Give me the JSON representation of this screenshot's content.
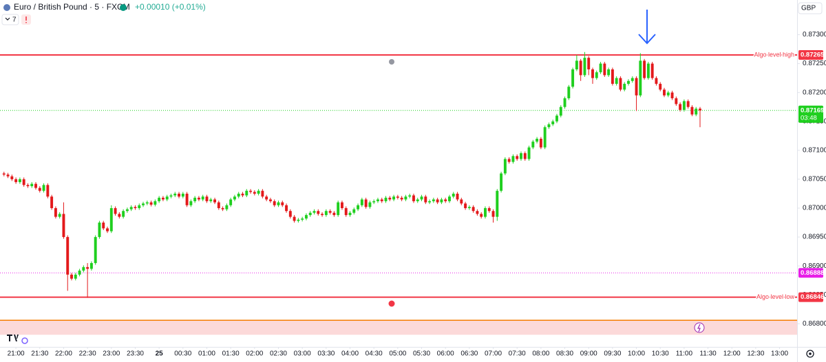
{
  "chart_data": {
    "type": "candlestick",
    "title": "Euro / British Pound · 5 · FXCM",
    "change": "+0.00010 (+0.01%)",
    "indicator_count": 7,
    "currency": "GBP",
    "up_color": "#1fcf1f",
    "down_color": "#e3191b",
    "grid": false,
    "xlim": [
      -1,
      199.4
    ],
    "ylim": [
      0.8676,
      0.8736
    ],
    "yticks": [
      {
        "value": 0.873,
        "label": "0.87300"
      },
      {
        "value": 0.8725,
        "label": "0.87250"
      },
      {
        "value": 0.872,
        "label": "0.87200"
      },
      {
        "value": 0.8715,
        "label": "0.87150"
      },
      {
        "value": 0.871,
        "label": "0.87100"
      },
      {
        "value": 0.8705,
        "label": "0.87050"
      },
      {
        "value": 0.87,
        "label": "0.87000"
      },
      {
        "value": 0.8695,
        "label": "0.86950"
      },
      {
        "value": 0.869,
        "label": "0.86900"
      },
      {
        "value": 0.8685,
        "label": "0.86850"
      },
      {
        "value": 0.868,
        "label": "0.86800"
      }
    ],
    "xticks": [
      {
        "value": 3,
        "label": "21:00"
      },
      {
        "value": 9,
        "label": "21:30"
      },
      {
        "value": 15,
        "label": "22:00"
      },
      {
        "value": 21,
        "label": "22:30"
      },
      {
        "value": 27,
        "label": "23:00"
      },
      {
        "value": 33,
        "label": "23:30"
      },
      {
        "value": 39,
        "label": "25"
      },
      {
        "value": 45,
        "label": "00:30"
      },
      {
        "value": 51,
        "label": "01:00"
      },
      {
        "value": 57,
        "label": "01:30"
      },
      {
        "value": 63,
        "label": "02:00"
      },
      {
        "value": 69,
        "label": "02:30"
      },
      {
        "value": 75,
        "label": "03:00"
      },
      {
        "value": 81,
        "label": "03:30"
      },
      {
        "value": 87,
        "label": "04:00"
      },
      {
        "value": 93,
        "label": "04:30"
      },
      {
        "value": 99,
        "label": "05:00"
      },
      {
        "value": 105,
        "label": "05:30"
      },
      {
        "value": 111,
        "label": "06:00"
      },
      {
        "value": 117,
        "label": "06:30"
      },
      {
        "value": 123,
        "label": "07:00"
      },
      {
        "value": 129,
        "label": "07:30"
      },
      {
        "value": 135,
        "label": "08:00"
      },
      {
        "value": 141,
        "label": "08:30"
      },
      {
        "value": 147,
        "label": "09:00"
      },
      {
        "value": 153,
        "label": "09:30"
      },
      {
        "value": 159,
        "label": "10:00"
      },
      {
        "value": 165,
        "label": "10:30"
      },
      {
        "value": 171,
        "label": "11:00"
      },
      {
        "value": 177,
        "label": "11:30"
      },
      {
        "value": 183,
        "label": "12:00"
      },
      {
        "value": 189,
        "label": "12:30"
      },
      {
        "value": 195,
        "label": "13:00"
      }
    ],
    "levels": [
      {
        "name": "Algo level high",
        "value": 0.87265,
        "label": "0.87265",
        "color": "#f23645",
        "style": "solid"
      },
      {
        "name": "Algo level low",
        "value": 0.86846,
        "label": "0.86846",
        "color": "#f23645",
        "style": "solid"
      },
      {
        "value": 0.87169,
        "label": "0.87169",
        "countdown": "03:48",
        "color": "#1fcf1f",
        "style": "dotted"
      },
      {
        "value": 0.86888,
        "label": "0.86888",
        "color": "#e81ee8",
        "style": "dotted"
      }
    ],
    "zones": [
      {
        "from": 0.86781,
        "to": 0.86806,
        "fill": "#fcd9d9",
        "edge": "#f57c00"
      }
    ],
    "open": [
      0.8706,
      0.87058,
      0.87055,
      0.8705,
      0.87045,
      0.8705,
      0.8704,
      0.87038,
      0.87042,
      0.87035,
      0.8703,
      0.8704,
      0.8702,
      0.87,
      0.86985,
      0.8699,
      0.8695,
      0.86885,
      0.86878,
      0.86885,
      0.86892,
      0.86898,
      0.86895,
      0.86905,
      0.8695,
      0.86975,
      0.86965,
      0.8696,
      0.87,
      0.8699,
      0.86985,
      0.86995,
      0.86998,
      0.87002,
      0.87,
      0.87005,
      0.87008,
      0.8701,
      0.87006,
      0.87012,
      0.87018,
      0.87015,
      0.8702,
      0.87022,
      0.87025,
      0.8702,
      0.87025,
      0.87005,
      0.87012,
      0.87018,
      0.87015,
      0.8702,
      0.87012,
      0.87015,
      0.8701,
      0.87,
      0.86998,
      0.87005,
      0.87015,
      0.8702,
      0.87025,
      0.87022,
      0.8703,
      0.87028,
      0.87025,
      0.8703,
      0.8702,
      0.87015,
      0.87012,
      0.87005,
      0.8701,
      0.87005,
      0.86995,
      0.86985,
      0.86978,
      0.8698,
      0.86982,
      0.86988,
      0.86992,
      0.86995,
      0.8699,
      0.86988,
      0.86995,
      0.86992,
      0.86988,
      0.8701,
      0.87,
      0.86988,
      0.86992,
      0.86998,
      0.87005,
      0.87015,
      0.87002,
      0.8701,
      0.87012,
      0.87015,
      0.87012,
      0.87018,
      0.87015,
      0.8702,
      0.87018,
      0.87015,
      0.8702,
      0.87022,
      0.87012,
      0.87015,
      0.8702,
      0.8701,
      0.87012,
      0.87015,
      0.8701,
      0.87015,
      0.87012,
      0.8702,
      0.87025,
      0.87015,
      0.87008,
      0.87,
      0.87002,
      0.86995,
      0.8699,
      0.86985,
      0.87,
      0.86995,
      0.86985,
      0.8703,
      0.8706,
      0.87085,
      0.8708,
      0.8709,
      0.87085,
      0.87095,
      0.87085,
      0.87105,
      0.87115,
      0.8712,
      0.87105,
      0.8714,
      0.87145,
      0.8715,
      0.8716,
      0.87175,
      0.8719,
      0.8721,
      0.8724,
      0.87255,
      0.8723,
      0.8726,
      0.8724,
      0.87225,
      0.87235,
      0.8725,
      0.8723,
      0.8724,
      0.87215,
      0.87225,
      0.87205,
      0.87215,
      0.8722,
      0.87225,
      0.87195,
      0.87255,
      0.87225,
      0.8725,
      0.87225,
      0.87215,
      0.87205,
      0.87195,
      0.872,
      0.8719,
      0.8718,
      0.8717,
      0.87185,
      0.87175,
      0.87162,
      0.87172
    ],
    "high": [
      0.87063,
      0.87061,
      0.87058,
      0.87053,
      0.87053,
      0.87053,
      0.87043,
      0.87045,
      0.87045,
      0.87038,
      0.87043,
      0.87043,
      0.87023,
      0.87003,
      0.86993,
      0.8701,
      0.86953,
      0.86888,
      0.86888,
      0.86895,
      0.86901,
      0.86905,
      0.86908,
      0.86953,
      0.86978,
      0.86978,
      0.86968,
      0.87005,
      0.87003,
      0.86993,
      0.86998,
      0.87001,
      0.87005,
      0.87005,
      0.87008,
      0.87011,
      0.87013,
      0.87013,
      0.87015,
      0.87021,
      0.87021,
      0.87023,
      0.87025,
      0.87028,
      0.87028,
      0.87028,
      0.87028,
      0.87015,
      0.87021,
      0.87021,
      0.87023,
      0.87023,
      0.87018,
      0.87018,
      0.87013,
      0.87003,
      0.87008,
      0.87018,
      0.87023,
      0.87028,
      0.87028,
      0.87033,
      0.87033,
      0.87031,
      0.87033,
      0.87033,
      0.87023,
      0.87018,
      0.87015,
      0.87013,
      0.87013,
      0.87008,
      0.86998,
      0.86988,
      0.86983,
      0.86985,
      0.86991,
      0.86995,
      0.86998,
      0.86998,
      0.86993,
      0.86998,
      0.86998,
      0.86995,
      0.87013,
      0.87013,
      0.87003,
      0.86995,
      0.87001,
      0.87008,
      0.87018,
      0.87018,
      0.87013,
      0.87015,
      0.87018,
      0.87018,
      0.87021,
      0.87021,
      0.87023,
      0.87023,
      0.87021,
      0.87023,
      0.87025,
      0.87025,
      0.87018,
      0.87023,
      0.87023,
      0.87015,
      0.87018,
      0.87018,
      0.87018,
      0.87018,
      0.87023,
      0.87028,
      0.87028,
      0.87018,
      0.87011,
      0.87005,
      0.87005,
      0.86998,
      0.86993,
      0.87003,
      0.87003,
      0.86998,
      0.87033,
      0.87063,
      0.87088,
      0.87088,
      0.87093,
      0.87093,
      0.87098,
      0.87098,
      0.87108,
      0.87118,
      0.87123,
      0.87123,
      0.87143,
      0.87148,
      0.87153,
      0.87163,
      0.87178,
      0.87193,
      0.87213,
      0.87243,
      0.87265,
      0.87258,
      0.8727,
      0.87263,
      0.87243,
      0.87238,
      0.87253,
      0.87253,
      0.87243,
      0.87243,
      0.87228,
      0.87228,
      0.87218,
      0.87223,
      0.87228,
      0.87228,
      0.87268,
      0.87258,
      0.87253,
      0.87253,
      0.87228,
      0.87218,
      0.87208,
      0.87203,
      0.87203,
      0.87193,
      0.87183,
      0.87188,
      0.87188,
      0.87178,
      0.87175,
      0.87175
    ],
    "low": [
      0.87055,
      0.87052,
      0.87047,
      0.87042,
      0.87042,
      0.87037,
      0.87035,
      0.87035,
      0.87032,
      0.87027,
      0.87027,
      0.87017,
      0.86997,
      0.86982,
      0.86982,
      0.86947,
      0.86857,
      0.86875,
      0.86875,
      0.86882,
      0.86889,
      0.86845,
      0.86892,
      0.86902,
      0.86947,
      0.86962,
      0.86957,
      0.86957,
      0.86987,
      0.86982,
      0.86982,
      0.86992,
      0.86995,
      0.86997,
      0.86997,
      0.87002,
      0.87005,
      0.87003,
      0.87003,
      0.87009,
      0.87012,
      0.87012,
      0.87017,
      0.87019,
      0.87017,
      0.87017,
      0.87002,
      0.87002,
      0.87009,
      0.87012,
      0.87012,
      0.87009,
      0.87009,
      0.87007,
      0.86997,
      0.86995,
      0.86995,
      0.87002,
      0.87012,
      0.87017,
      0.87019,
      0.87019,
      0.87025,
      0.87022,
      0.87022,
      0.87017,
      0.87012,
      0.87009,
      0.87002,
      0.87002,
      0.87002,
      0.86992,
      0.86982,
      0.86975,
      0.86975,
      0.86977,
      0.86979,
      0.86985,
      0.86989,
      0.86987,
      0.86985,
      0.86985,
      0.86989,
      0.86985,
      0.86985,
      0.86997,
      0.86985,
      0.86985,
      0.86989,
      0.86995,
      0.87002,
      0.86999,
      0.86999,
      0.87007,
      0.87009,
      0.87009,
      0.87009,
      0.87012,
      0.87012,
      0.87015,
      0.87012,
      0.87012,
      0.87017,
      0.87009,
      0.87009,
      0.87012,
      0.87007,
      0.87007,
      0.87009,
      0.87007,
      0.87007,
      0.87009,
      0.87009,
      0.87017,
      0.87012,
      0.87005,
      0.86997,
      0.86997,
      0.86992,
      0.86987,
      0.86982,
      0.86982,
      0.86992,
      0.86975,
      0.86978,
      0.87027,
      0.87057,
      0.87077,
      0.87077,
      0.87082,
      0.87082,
      0.87082,
      0.87082,
      0.87102,
      0.87112,
      0.87102,
      0.87102,
      0.87137,
      0.87142,
      0.87147,
      0.87157,
      0.87172,
      0.87187,
      0.87207,
      0.87237,
      0.8722,
      0.87227,
      0.8723,
      0.87215,
      0.87222,
      0.87232,
      0.87227,
      0.87227,
      0.87212,
      0.87212,
      0.87202,
      0.87202,
      0.87212,
      0.87217,
      0.87168,
      0.87192,
      0.87222,
      0.87222,
      0.87222,
      0.87212,
      0.87202,
      0.87192,
      0.87192,
      0.87187,
      0.87177,
      0.87167,
      0.87167,
      0.87172,
      0.87159,
      0.87159,
      0.8714
    ],
    "close": [
      0.87058,
      0.87055,
      0.8705,
      0.87045,
      0.8705,
      0.8704,
      0.87038,
      0.87042,
      0.87035,
      0.8703,
      0.8704,
      0.8702,
      0.87,
      0.86985,
      0.8699,
      0.8695,
      0.86885,
      0.86878,
      0.86885,
      0.86892,
      0.86898,
      0.86895,
      0.86905,
      0.8695,
      0.86975,
      0.86965,
      0.8696,
      0.87,
      0.8699,
      0.86985,
      0.86995,
      0.86998,
      0.87002,
      0.87,
      0.87005,
      0.87008,
      0.8701,
      0.87006,
      0.87012,
      0.87018,
      0.87015,
      0.8702,
      0.87022,
      0.87025,
      0.8702,
      0.87025,
      0.87005,
      0.87012,
      0.87018,
      0.87015,
      0.8702,
      0.87012,
      0.87015,
      0.8701,
      0.87,
      0.86998,
      0.87005,
      0.87015,
      0.8702,
      0.87025,
      0.87022,
      0.8703,
      0.87028,
      0.87025,
      0.8703,
      0.8702,
      0.87015,
      0.87012,
      0.87005,
      0.8701,
      0.87005,
      0.86995,
      0.86985,
      0.86978,
      0.8698,
      0.86982,
      0.86988,
      0.86992,
      0.86995,
      0.8699,
      0.86988,
      0.86995,
      0.86992,
      0.86988,
      0.8701,
      0.87,
      0.86988,
      0.86992,
      0.86998,
      0.87005,
      0.87015,
      0.87002,
      0.8701,
      0.87012,
      0.87015,
      0.87012,
      0.87018,
      0.87015,
      0.8702,
      0.87018,
      0.87015,
      0.8702,
      0.87022,
      0.87012,
      0.87015,
      0.8702,
      0.8701,
      0.87012,
      0.87015,
      0.8701,
      0.87015,
      0.87012,
      0.8702,
      0.87025,
      0.87015,
      0.87008,
      0.87,
      0.87002,
      0.86995,
      0.8699,
      0.86985,
      0.87,
      0.86995,
      0.86985,
      0.8703,
      0.8706,
      0.87085,
      0.8708,
      0.8709,
      0.87085,
      0.87095,
      0.87085,
      0.87105,
      0.87115,
      0.8712,
      0.87105,
      0.8714,
      0.87145,
      0.8715,
      0.8716,
      0.87175,
      0.8719,
      0.8721,
      0.8724,
      0.87255,
      0.8723,
      0.8726,
      0.8724,
      0.87225,
      0.87235,
      0.8725,
      0.8723,
      0.8724,
      0.87215,
      0.87225,
      0.87205,
      0.87215,
      0.8722,
      0.87225,
      0.87195,
      0.87255,
      0.87225,
      0.8725,
      0.87225,
      0.87215,
      0.87205,
      0.87195,
      0.872,
      0.8719,
      0.8718,
      0.8717,
      0.87185,
      0.87175,
      0.87162,
      0.87172,
      0.87169
    ]
  }
}
